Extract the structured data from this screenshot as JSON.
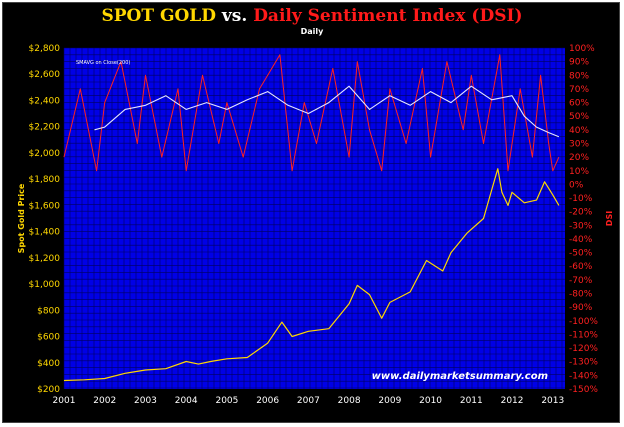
{
  "title": {
    "part1": "SPOT GOLD ",
    "part2": "vs. ",
    "part3": "Daily Sentiment Index (DSI)",
    "color1": "#ffd700",
    "color2": "#ffffff",
    "color3": "#ff1a1a"
  },
  "subtitle": "Daily",
  "watermark": "www.dailymarketsummary.com",
  "legend_label": "SMAVG on Close(200)",
  "colors": {
    "background": "#000000",
    "plot_bg": "#0000e6",
    "gold": "#ffd700",
    "dsi": "#ff2020",
    "sma": "#e6e6ff",
    "grid": "#000060"
  },
  "chart_data": {
    "type": "line",
    "x_range": [
      "2001-01",
      "2013-04"
    ],
    "x_ticks": [
      "2001",
      "2002",
      "2003",
      "2004",
      "2005",
      "2006",
      "2007",
      "2008",
      "2009",
      "2010",
      "2011",
      "2012",
      "2013"
    ],
    "left_axis": {
      "label": "Spot Gold Price",
      "ylim": [
        200,
        2800
      ],
      "ticks": [
        "$200",
        "$400",
        "$600",
        "$800",
        "$1,000",
        "$1,200",
        "$1,400",
        "$1,600",
        "$1,800",
        "$2,000",
        "$2,200",
        "$2,400",
        "$2,600",
        "$2,800"
      ]
    },
    "right_axis": {
      "label": "DSI",
      "ylim": [
        -150,
        100
      ],
      "ticks": [
        "-150%",
        "-140%",
        "-130%",
        "-120%",
        "-110%",
        "-100%",
        "-90%",
        "-80%",
        "-70%",
        "-60%",
        "-50%",
        "-40%",
        "-30%",
        "-20%",
        "-10%",
        "0%",
        "10%",
        "20%",
        "30%",
        "40%",
        "50%",
        "60%",
        "70%",
        "80%",
        "90%",
        "100%"
      ]
    },
    "series": [
      {
        "name": "Spot Gold",
        "axis": "left",
        "x": [
          2001.0,
          2001.5,
          2002.0,
          2002.5,
          2003.0,
          2003.5,
          2004.0,
          2004.3,
          2004.6,
          2005.0,
          2005.5,
          2006.0,
          2006.35,
          2006.6,
          2007.0,
          2007.5,
          2008.0,
          2008.2,
          2008.5,
          2008.8,
          2009.0,
          2009.5,
          2009.9,
          2010.3,
          2010.5,
          2010.9,
          2011.3,
          2011.65,
          2011.75,
          2011.9,
          2012.0,
          2012.3,
          2012.6,
          2012.8,
          2013.0,
          2013.15
        ],
        "values": [
          265,
          270,
          280,
          320,
          345,
          355,
          410,
          390,
          410,
          430,
          440,
          550,
          710,
          600,
          640,
          660,
          850,
          990,
          920,
          740,
          860,
          940,
          1180,
          1100,
          1240,
          1390,
          1500,
          1880,
          1700,
          1600,
          1700,
          1620,
          1640,
          1780,
          1680,
          1600
        ]
      },
      {
        "name": "DSI",
        "axis": "right",
        "x": [
          2001.0,
          2001.4,
          2001.8,
          2002.0,
          2002.4,
          2002.8,
          2003.0,
          2003.4,
          2003.8,
          2004.0,
          2004.4,
          2004.8,
          2005.0,
          2005.4,
          2005.8,
          2006.0,
          2006.3,
          2006.6,
          2006.9,
          2007.2,
          2007.6,
          2008.0,
          2008.2,
          2008.5,
          2008.8,
          2009.0,
          2009.4,
          2009.8,
          2010.0,
          2010.4,
          2010.8,
          2011.0,
          2011.3,
          2011.7,
          2011.9,
          2012.2,
          2012.5,
          2012.7,
          2012.9,
          2013.0,
          2013.15
        ],
        "values": [
          20,
          70,
          10,
          60,
          90,
          30,
          80,
          20,
          70,
          10,
          80,
          30,
          60,
          20,
          70,
          80,
          95,
          10,
          60,
          30,
          85,
          20,
          90,
          40,
          10,
          70,
          30,
          85,
          20,
          90,
          40,
          80,
          30,
          95,
          10,
          70,
          20,
          80,
          30,
          10,
          20
        ]
      },
      {
        "name": "SMAVG on Close(200)",
        "axis": "right",
        "x": [
          2001.75,
          2002.0,
          2002.5,
          2003.0,
          2003.5,
          2004.0,
          2004.5,
          2005.0,
          2005.5,
          2006.0,
          2006.5,
          2007.0,
          2007.5,
          2008.0,
          2008.5,
          2009.0,
          2009.5,
          2010.0,
          2010.5,
          2011.0,
          2011.5,
          2012.0,
          2012.3,
          2012.6,
          2012.9,
          2013.15
        ],
        "values": [
          40,
          42,
          55,
          58,
          65,
          55,
          60,
          55,
          62,
          68,
          58,
          52,
          60,
          72,
          55,
          65,
          58,
          68,
          60,
          72,
          62,
          65,
          50,
          42,
          38,
          35
        ]
      }
    ]
  }
}
